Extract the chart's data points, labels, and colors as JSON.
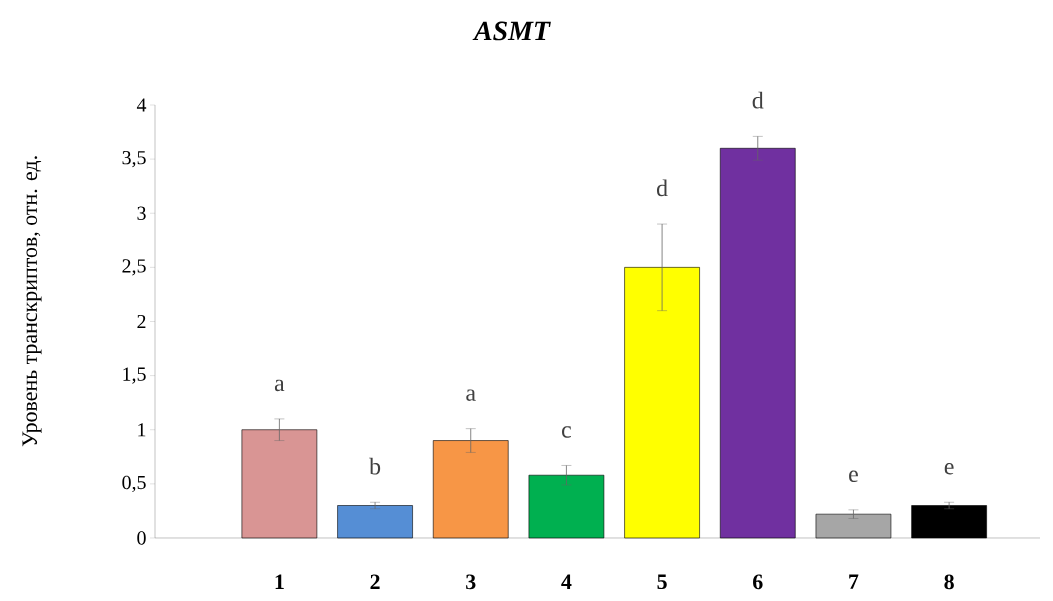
{
  "chart_data": {
    "type": "bar",
    "title": "ASMT",
    "ylabel": "Уровень транскриптов, отн. ед.",
    "categories": [
      "1",
      "2",
      "3",
      "4",
      "5",
      "6",
      "7",
      "8"
    ],
    "values": [
      1.0,
      0.3,
      0.9,
      0.58,
      2.5,
      3.6,
      0.22,
      0.3
    ],
    "errors": [
      0.1,
      0.03,
      0.11,
      0.09,
      0.4,
      0.11,
      0.04,
      0.03
    ],
    "colors": [
      "#d99594",
      "#558ed5",
      "#f79646",
      "#00b050",
      "#ffff00",
      "#7030a0",
      "#a6a6a6",
      "#000000"
    ],
    "ylim": [
      0,
      4
    ],
    "yticks": [
      0,
      {
        "value": 0.5,
        "label": "0,5"
      },
      1,
      {
        "value": 1.5,
        "label": "1,5"
      },
      2,
      {
        "value": 2.5,
        "label": "2,5"
      },
      3,
      {
        "value": 3.5,
        "label": "3,5"
      },
      4
    ],
    "annotations": [
      "a",
      "b",
      "a",
      "c",
      "d",
      "d",
      "e",
      "e"
    ]
  }
}
